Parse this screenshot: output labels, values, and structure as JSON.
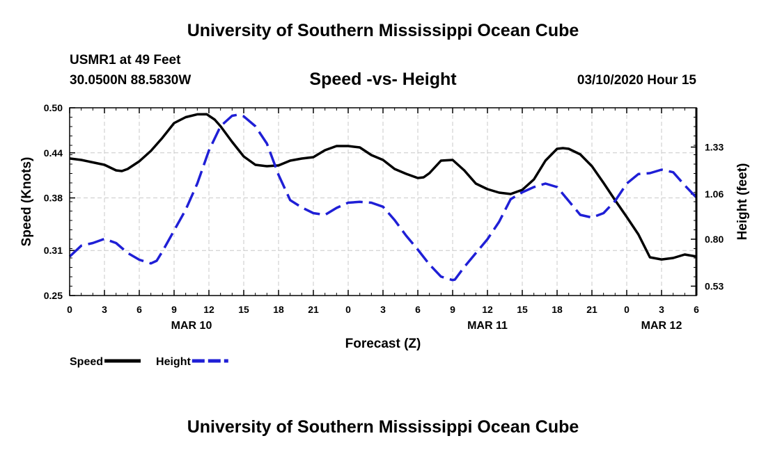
{
  "header": {
    "title": "University of Southern Mississippi Ocean Cube",
    "station": "USMR1 at 49 Feet",
    "coords": "30.0500N 88.5830W",
    "subtitle": "Speed -vs- Height",
    "datetime": "03/10/2020 Hour 15"
  },
  "footer": {
    "title": "University of Southern Mississippi Ocean Cube"
  },
  "chart_data": {
    "type": "line",
    "title": "Speed -vs- Height",
    "xlabel": "Forecast (Z)",
    "ylabel": "Speed (Knots)",
    "y2label": "Height (feet)",
    "grid": true,
    "x_range": [
      0,
      54
    ],
    "x_ticks": [
      0,
      3,
      6,
      9,
      12,
      15,
      18,
      21,
      24,
      27,
      30,
      33,
      36,
      39,
      42,
      45,
      48,
      51,
      54
    ],
    "x_tick_labels": [
      "0",
      "3",
      "6",
      "9",
      "12",
      "15",
      "18",
      "21",
      "0",
      "3",
      "6",
      "9",
      "12",
      "15",
      "18",
      "21",
      "0",
      "3",
      "6"
    ],
    "date_labels": [
      {
        "x": 10.5,
        "label": "MAR 10"
      },
      {
        "x": 36,
        "label": "MAR 11"
      },
      {
        "x": 51,
        "label": "MAR 12"
      }
    ],
    "ylim": [
      0.25,
      0.5
    ],
    "y_ticks": [
      "0.25",
      "0.31",
      "0.38",
      "0.44",
      "0.50"
    ],
    "y2lim": [
      0.476,
      1.556
    ],
    "y2_ticks": [
      "0.53",
      "0.80",
      "1.06",
      "1.33"
    ],
    "legend_position": "bottom-left",
    "series": [
      {
        "name": "Speed",
        "axis": "left",
        "color": "#000000",
        "style": "solid",
        "x": [
          0,
          1,
          2,
          3,
          4,
          4.5,
          5,
          6,
          7,
          8,
          9,
          10,
          11,
          11.8,
          12.5,
          13,
          14,
          15,
          16,
          17,
          18,
          19,
          20,
          21,
          22,
          23,
          24,
          25,
          26,
          27,
          28,
          29,
          30,
          30.5,
          31,
          32,
          33,
          34,
          35,
          36,
          37,
          38,
          39,
          40,
          41,
          42,
          42.5,
          43,
          44,
          45,
          46,
          47,
          48,
          49,
          50,
          51,
          52,
          53,
          54
        ],
        "values": [
          0.4325,
          0.4306,
          0.4273,
          0.4241,
          0.4167,
          0.4157,
          0.4185,
          0.4287,
          0.4426,
          0.4601,
          0.4796,
          0.4875,
          0.4913,
          0.4915,
          0.4843,
          0.4755,
          0.4546,
          0.4352,
          0.4241,
          0.4222,
          0.4232,
          0.4296,
          0.4324,
          0.4343,
          0.4435,
          0.4491,
          0.4491,
          0.4472,
          0.437,
          0.4306,
          0.4185,
          0.412,
          0.4065,
          0.4074,
          0.413,
          0.4296,
          0.4306,
          0.4167,
          0.3991,
          0.3917,
          0.387,
          0.3852,
          0.3907,
          0.4046,
          0.4296,
          0.4454,
          0.4463,
          0.4454,
          0.438,
          0.4222,
          0.4,
          0.3769,
          0.3546,
          0.3315,
          0.3009,
          0.2981,
          0.3,
          0.3046,
          0.3019
        ]
      },
      {
        "name": "Height",
        "axis": "right",
        "color": "#1f1fd6",
        "style": "dashed",
        "x": [
          0,
          1,
          2,
          3,
          4,
          5,
          6,
          7,
          7.5,
          8,
          9,
          10,
          11,
          12,
          13,
          14,
          14.5,
          15,
          16,
          17,
          18,
          19,
          20,
          21,
          22,
          23,
          24,
          25,
          26,
          27,
          28,
          29,
          30,
          31,
          32,
          33,
          33.2,
          34,
          35,
          36,
          37,
          38,
          39,
          40,
          41,
          42,
          43,
          44,
          45,
          46,
          47,
          48,
          49,
          50,
          51,
          52,
          53,
          54
        ],
        "values": [
          0.7,
          0.763,
          0.778,
          0.802,
          0.778,
          0.721,
          0.682,
          0.661,
          0.676,
          0.73,
          0.85,
          0.97,
          1.12,
          1.31,
          1.45,
          1.51,
          1.516,
          1.507,
          1.45,
          1.35,
          1.17,
          1.025,
          0.983,
          0.95,
          0.94,
          0.98,
          1.01,
          1.015,
          1.01,
          0.987,
          0.91,
          0.82,
          0.74,
          0.655,
          0.585,
          0.565,
          0.568,
          0.64,
          0.72,
          0.8,
          0.9,
          1.03,
          1.07,
          1.1,
          1.12,
          1.1,
          1.02,
          0.94,
          0.925,
          0.95,
          1.02,
          1.12,
          1.175,
          1.18,
          1.2,
          1.185,
          1.11,
          1.04
        ]
      }
    ]
  }
}
